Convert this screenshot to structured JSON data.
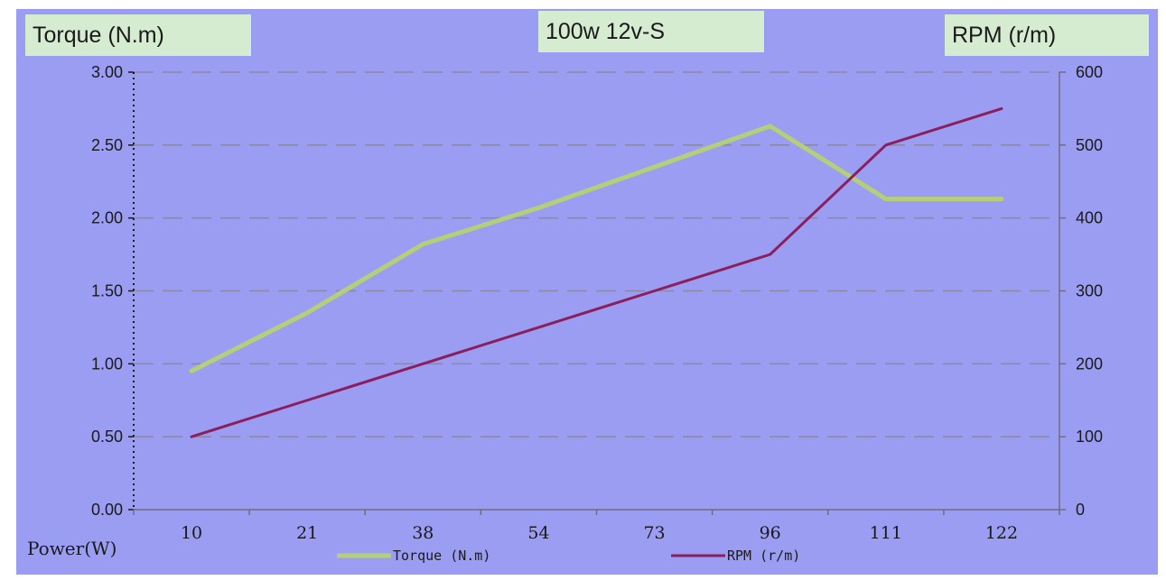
{
  "chart_data": {
    "type": "line",
    "title": "100w 12v-S",
    "ylabel_left": "Torque (N.m)",
    "ylabel_right": "RPM (r/m)",
    "xlabel": "Power(W)",
    "categories": [
      "10",
      "21",
      "38",
      "54",
      "73",
      "96",
      "111",
      "122"
    ],
    "y_left": {
      "range": [
        0,
        3
      ],
      "ticks": [
        "0.00",
        "0.50",
        "1.00",
        "1.50",
        "2.00",
        "2.50",
        "3.00"
      ]
    },
    "y_right": {
      "range": [
        0,
        600
      ],
      "ticks": [
        "0",
        "100",
        "200",
        "300",
        "400",
        "500",
        "600"
      ]
    },
    "grid": "horizontal-dashed",
    "legend_position": "bottom",
    "series": [
      {
        "name": "Torque (N.m)",
        "axis": "left",
        "color": "#b5cf77",
        "values": [
          0.95,
          1.35,
          1.82,
          2.07,
          2.35,
          2.63,
          2.13,
          2.13
        ]
      },
      {
        "name": "RPM (r/m)",
        "axis": "right",
        "color": "#8b1e5c",
        "values": [
          100,
          150,
          200,
          250,
          300,
          350,
          500,
          550
        ]
      }
    ],
    "legend_labels": [
      "Torque (N.m)",
      "RPM (r/m)"
    ]
  }
}
